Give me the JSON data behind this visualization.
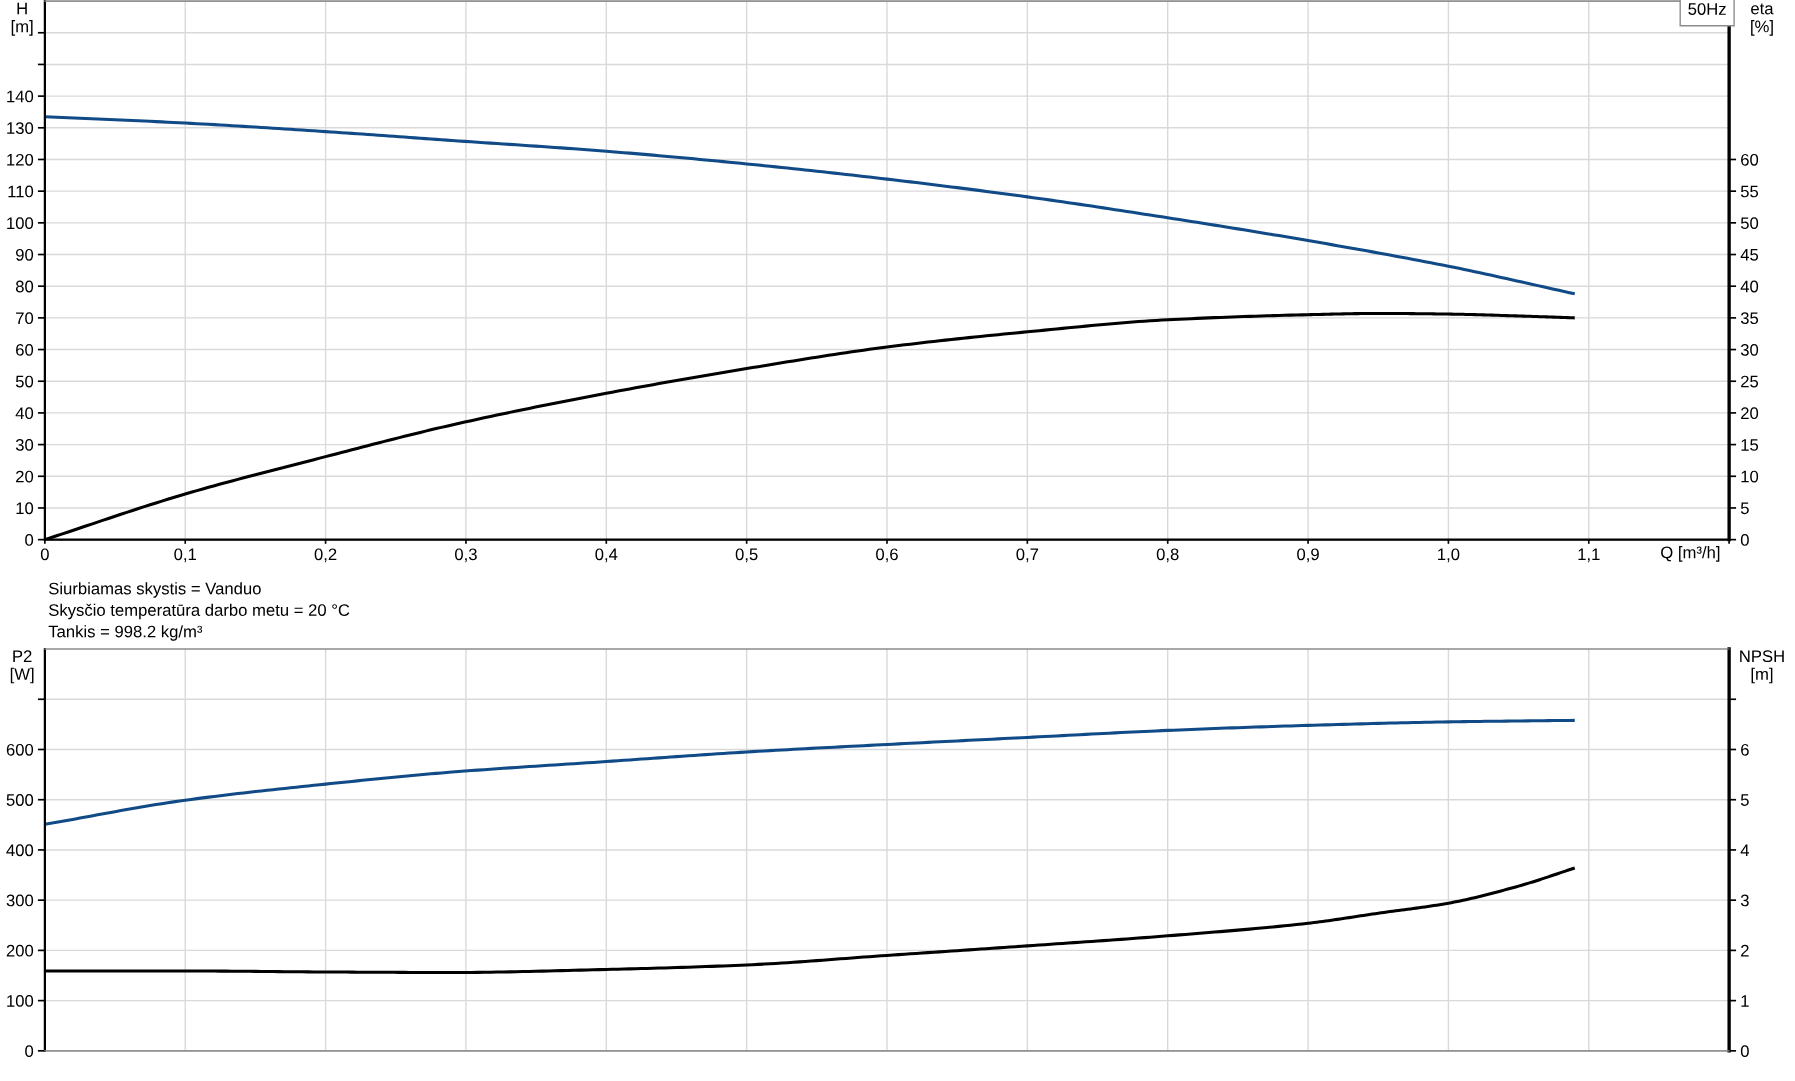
{
  "chart_data": [
    {
      "type": "line",
      "xlabel": "Q [m³/h]",
      "ylabel": "H\n[m]",
      "y2label": "eta\n[%]",
      "annotations": [
        "50Hz"
      ],
      "xlim": [
        0,
        1.2
      ],
      "xticks": [
        0,
        {
          "value": 0.1,
          "label": "0,1"
        },
        {
          "value": 0.2,
          "label": "0,2"
        },
        {
          "value": 0.3,
          "label": "0,3"
        },
        {
          "value": 0.4,
          "label": "0,4"
        },
        {
          "value": 0.5,
          "label": "0,5"
        },
        {
          "value": 0.6,
          "label": "0,6"
        },
        {
          "value": 0.7,
          "label": "0,7"
        },
        {
          "value": 0.8,
          "label": "0,8"
        },
        {
          "value": 0.9,
          "label": "0,9"
        },
        {
          "value": 1.0,
          "label": "1,0"
        },
        {
          "value": 1.1,
          "label": "1,1"
        },
        {
          "value": 1.2,
          "label": null
        }
      ],
      "ylim": [
        0,
        170
      ],
      "yticks": [
        0,
        10,
        20,
        30,
        40,
        50,
        60,
        70,
        80,
        90,
        100,
        110,
        120,
        130,
        140,
        {
          "value": 150,
          "label": null
        },
        {
          "value": 160,
          "label": null
        }
      ],
      "y2lim": [
        0,
        85
      ],
      "y2ticks": [
        0,
        5,
        10,
        15,
        20,
        25,
        30,
        35,
        40,
        45,
        50,
        55,
        60
      ],
      "grid": true,
      "marker": "none",
      "line_style": "solid",
      "series": [
        {
          "color": "#114b87",
          "x": [
            0,
            0.1,
            0.2,
            0.29,
            0.4,
            0.5,
            0.6,
            0.7,
            0.8,
            0.9,
            1.0,
            1.09
          ],
          "values": [
            133.5,
            131.5,
            128.8,
            126.0,
            122.6,
            118.6,
            113.8,
            108.2,
            101.6,
            94.4,
            86.3,
            77.6
          ]
        },
        {
          "color": "#000000",
          "axis": "y2",
          "x": [
            0,
            0.1,
            0.2,
            0.29,
            0.4,
            0.5,
            0.6,
            0.7,
            0.8,
            0.9,
            0.95,
            1.0,
            1.05,
            1.09
          ],
          "values": [
            0,
            7.2,
            13.1,
            18.1,
            23.1,
            27.0,
            30.4,
            32.8,
            34.7,
            35.5,
            35.7,
            35.6,
            35.3,
            35.0
          ]
        }
      ]
    },
    {
      "type": "line",
      "ylabel": "P2\n[W]",
      "y2label": "NPSH\n[m]",
      "annotations": [
        "Siurbiamas skystis = Vanduo",
        "Skysčio temperatūra darbo metu = 20 °C",
        "Tankis = 998.2 kg/m³"
      ],
      "xlim": [
        0,
        1.2
      ],
      "xticks": [
        {
          "value": 0,
          "label": null
        },
        {
          "value": 0.1,
          "label": null
        },
        {
          "value": 0.2,
          "label": null
        },
        {
          "value": 0.3,
          "label": null
        },
        {
          "value": 0.4,
          "label": null
        },
        {
          "value": 0.5,
          "label": null
        },
        {
          "value": 0.6,
          "label": null
        },
        {
          "value": 0.7,
          "label": null
        },
        {
          "value": 0.8,
          "label": null
        },
        {
          "value": 0.9,
          "label": null
        },
        {
          "value": 1.0,
          "label": null
        },
        {
          "value": 1.1,
          "label": null
        },
        {
          "value": 1.2,
          "label": null
        }
      ],
      "ylim": [
        0,
        800
      ],
      "yticks": [
        0,
        100,
        200,
        300,
        400,
        500,
        600,
        {
          "value": 700,
          "label": null
        }
      ],
      "y2lim": [
        0,
        8
      ],
      "y2ticks": [
        0,
        1,
        2,
        3,
        4,
        5,
        6,
        {
          "value": 7,
          "label": null
        }
      ],
      "tick_labels": "y",
      "grid": true,
      "marker": "none",
      "line_style": "solid",
      "series": [
        {
          "color": "#114b87",
          "x": [
            0,
            0.1,
            0.2,
            0.29,
            0.4,
            0.5,
            0.6,
            0.7,
            0.8,
            0.9,
            1.0,
            1.09
          ],
          "values": [
            451,
            499,
            531,
            555,
            576,
            595,
            610,
            624,
            638,
            648,
            655,
            658
          ]
        },
        {
          "color": "#000000",
          "axis": "y2",
          "x": [
            0,
            0.1,
            0.2,
            0.29,
            0.4,
            0.5,
            0.6,
            0.7,
            0.8,
            0.9,
            0.95,
            1.0,
            1.05,
            1.09
          ],
          "values": [
            1.59,
            1.59,
            1.57,
            1.56,
            1.62,
            1.71,
            1.9,
            2.09,
            2.29,
            2.54,
            2.74,
            2.94,
            3.28,
            3.64
          ]
        }
      ]
    }
  ]
}
